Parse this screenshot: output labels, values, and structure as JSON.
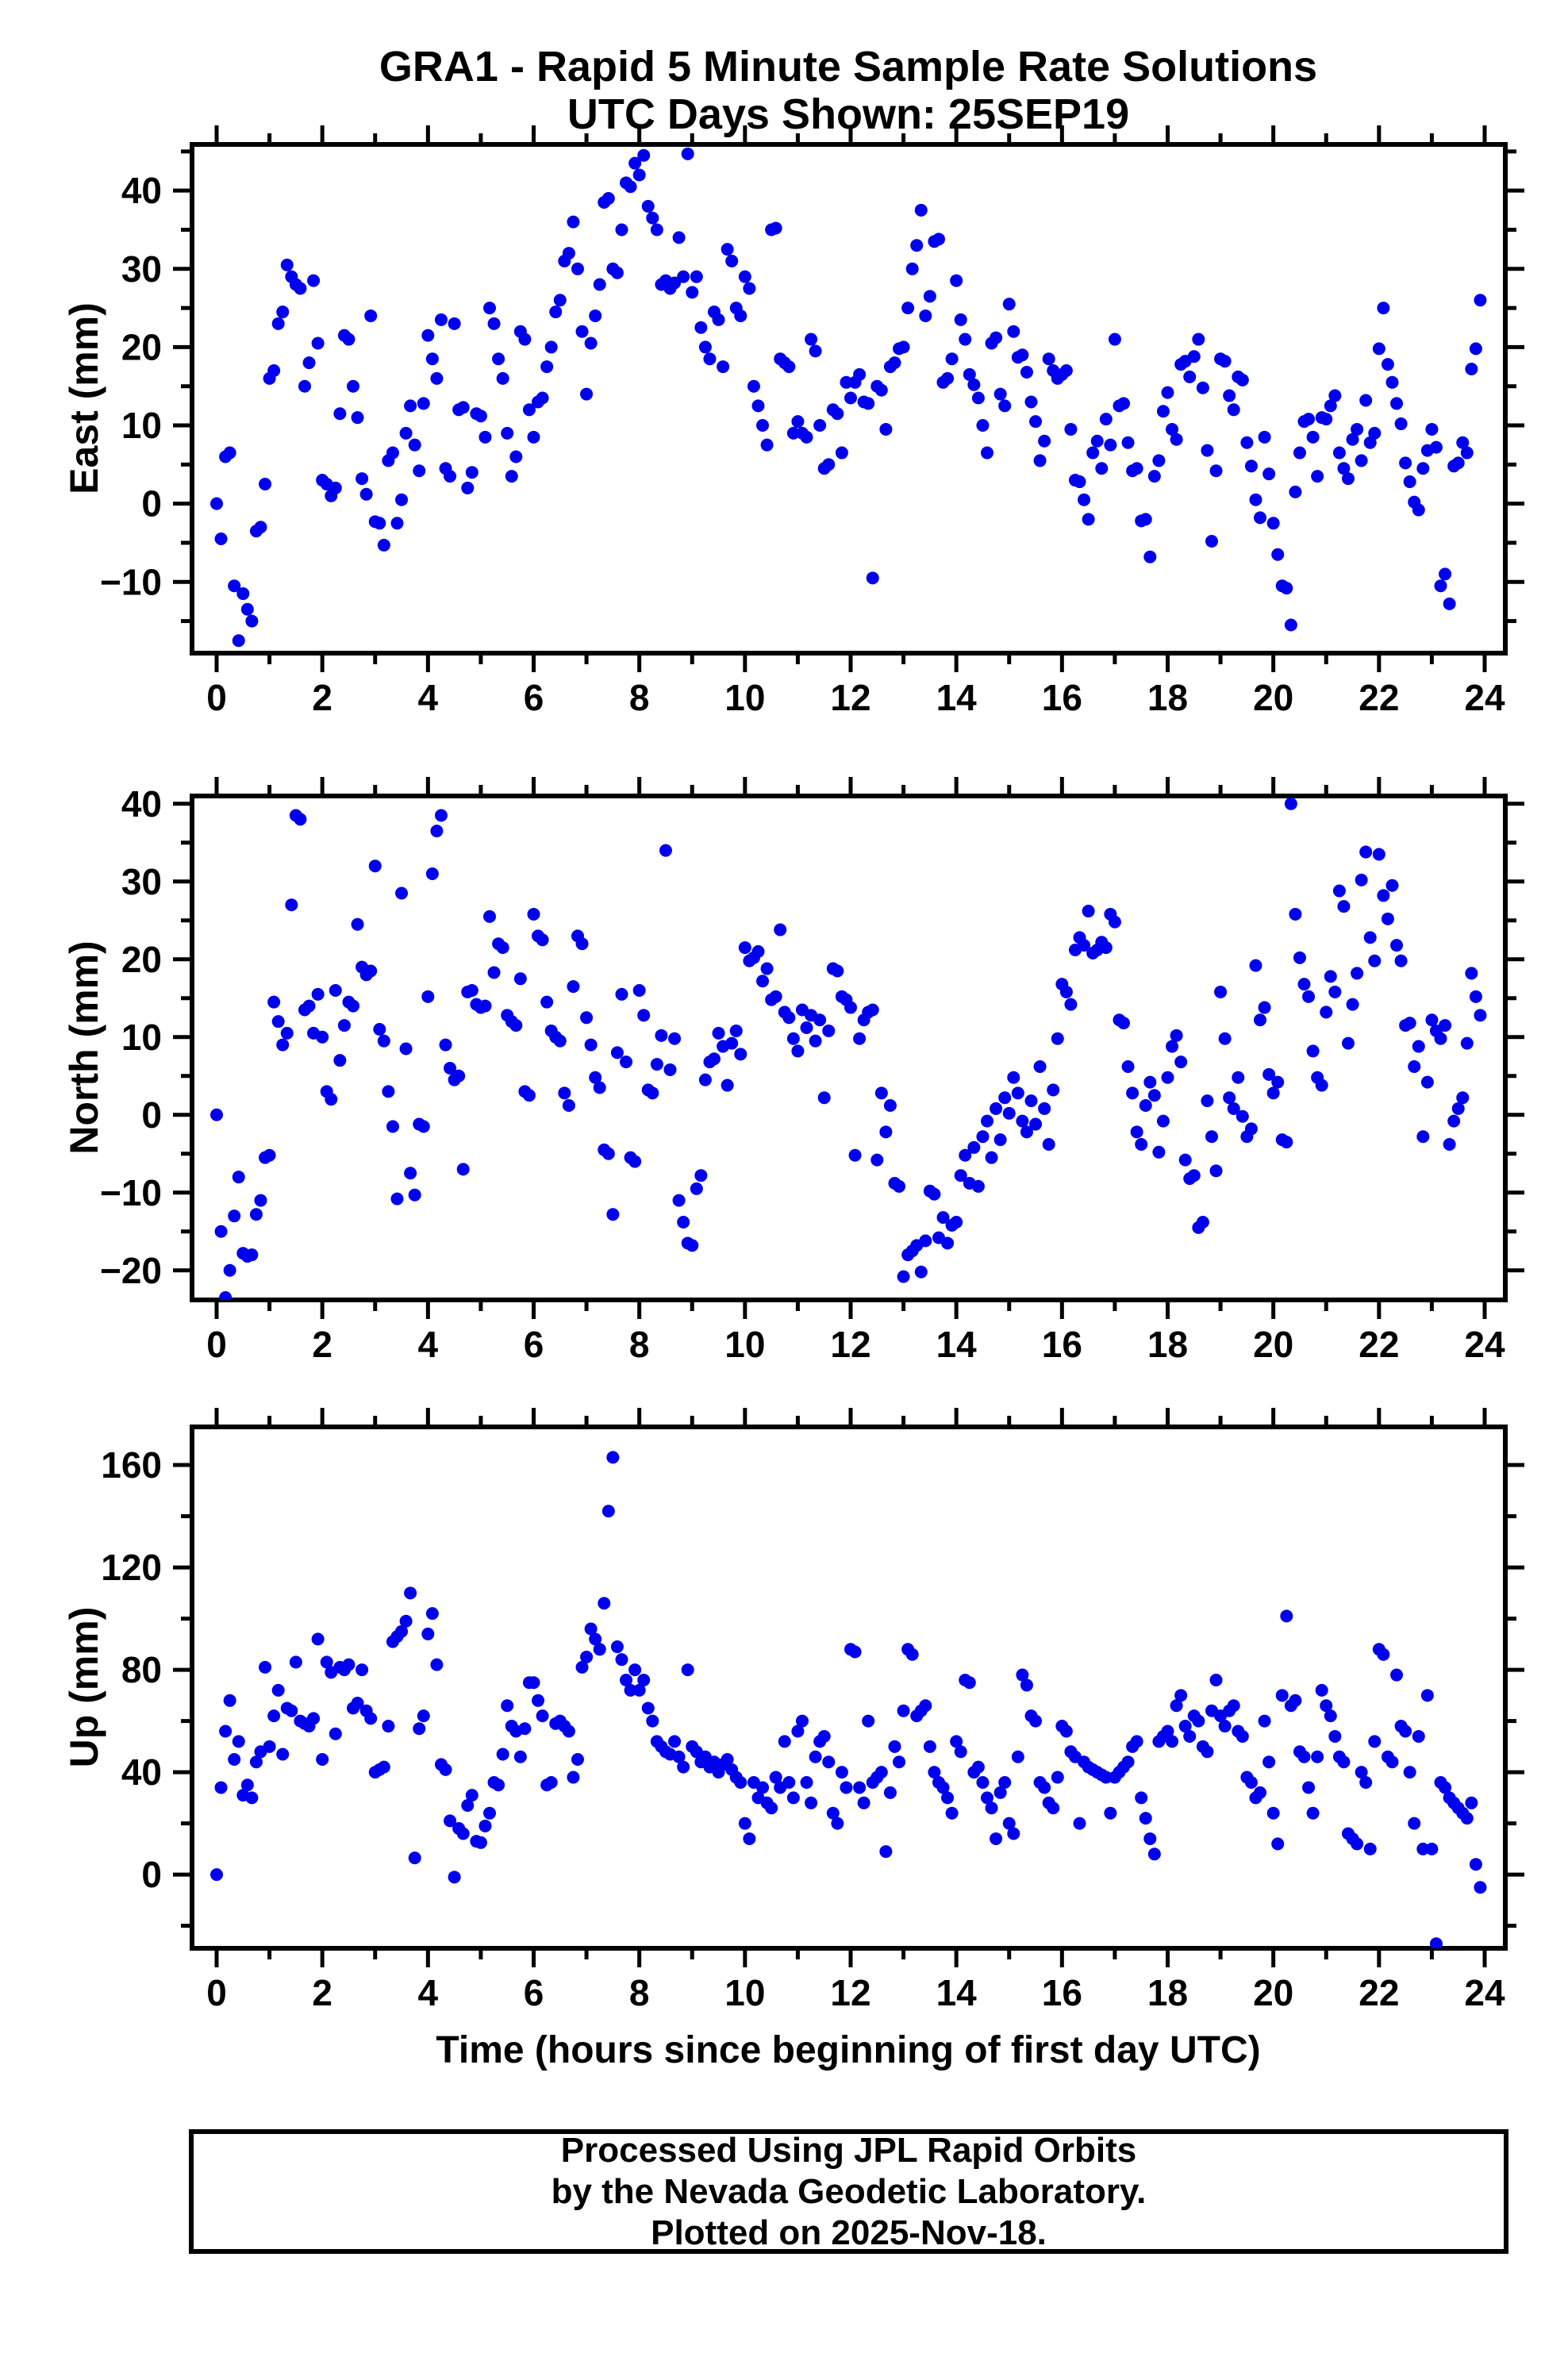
{
  "title": {
    "line1": "GRA1 - Rapid 5 Minute Sample Rate Solutions",
    "line2": "UTC Days Shown:  25SEP19"
  },
  "xlabel": "Time (hours since beginning of first day UTC)",
  "footer": {
    "line1": "Processed Using JPL Rapid Orbits",
    "line2": "by the Nevada Geodetic Laboratory.",
    "line3": "Plotted on 2025-Nov-18."
  },
  "style": {
    "dot_color": "#0000EE",
    "frame_color": "#000000",
    "background": "#FFFFFF"
  },
  "chart_data": [
    {
      "type": "scatter",
      "name": "east",
      "ylabel": "East (mm)",
      "ylim": [
        -19.1,
        45.9
      ],
      "yticks_major": [
        -10,
        0,
        10,
        20,
        30,
        40
      ],
      "yticks_minor": [
        -15,
        -5,
        5,
        15,
        25,
        35,
        45
      ],
      "xlim": [
        -0.47,
        24.39
      ],
      "xticks_major": [
        0,
        2,
        4,
        6,
        8,
        10,
        12,
        14,
        16,
        18,
        20,
        22,
        24
      ],
      "xticks_minor": [
        1,
        3,
        5,
        7,
        9,
        11,
        13,
        15,
        17,
        19,
        21,
        23
      ],
      "x_start_hours": 0,
      "x_step_hours": 0.0833333,
      "values": [
        0,
        -4.5,
        6,
        6.5,
        -10.5,
        -17.5,
        -11.5,
        -13.5,
        -15,
        -3.5,
        -3,
        2.5,
        16,
        17,
        23,
        24.5,
        30.5,
        29,
        28,
        27.5,
        15,
        18,
        28.5,
        20.5,
        3,
        2.5,
        1,
        2,
        11.5,
        21.5,
        21,
        15,
        11,
        3.2,
        1.2,
        24,
        -2.3,
        -2.5,
        -5.3,
        5.5,
        6.5,
        -2.5,
        0.5,
        9,
        12.5,
        7.5,
        4.2,
        12.8,
        21.5,
        18.5,
        16,
        23.5,
        4.5,
        3.5,
        23,
        12,
        12.3,
        2,
        4,
        11.5,
        11.2,
        8.5,
        25,
        23,
        18.5,
        16,
        9,
        3.5,
        6,
        22,
        21,
        12,
        8.5,
        13,
        13.5,
        17.5,
        20,
        24.5,
        26,
        31,
        32,
        36,
        30,
        22,
        14,
        20.5,
        24,
        28,
        38.5,
        39,
        30,
        29.5,
        35,
        41,
        40.5,
        43.5,
        42,
        44.5,
        38,
        36.5,
        35,
        28,
        28.5,
        27.5,
        28.2,
        34,
        29,
        44.7,
        27,
        29,
        22.5,
        20,
        18.5,
        24.5,
        23.5,
        17.5,
        32.5,
        31,
        25,
        24,
        29,
        27.5,
        15,
        12.5,
        10,
        7.5,
        35,
        35.2,
        18.5,
        18,
        17.5,
        9,
        10.5,
        9,
        8.5,
        21,
        19.5,
        10,
        4.5,
        5,
        12,
        11.5,
        6.5,
        15.5,
        13.5,
        15.5,
        16.5,
        13,
        12.8,
        -9.5,
        15,
        14.5,
        9.5,
        17.5,
        18,
        19.8,
        20,
        25,
        30,
        33,
        37.5,
        24,
        26.5,
        33.5,
        33.8,
        15.5,
        16,
        18.5,
        28.5,
        23.5,
        21,
        16.5,
        15.2,
        13.5,
        10,
        6.5,
        20.5,
        21.2,
        14,
        12.5,
        25.5,
        22,
        18.7,
        19,
        16.8,
        13,
        10.5,
        5.5,
        8,
        18.5,
        17,
        16,
        16.5,
        17,
        9.5,
        3,
        2.8,
        0.5,
        -2,
        6.5,
        8,
        4.5,
        10.8,
        7.5,
        21,
        12.5,
        12.8,
        7.8,
        4.2,
        4.5,
        -2.2,
        -2,
        -6.8,
        3.5,
        5.5,
        11.8,
        14.2,
        9.5,
        8.2,
        17.8,
        18.2,
        16.2,
        18.8,
        21,
        14.8,
        6.8,
        -4.8,
        4.2,
        18.5,
        18.2,
        13.8,
        12,
        16.2,
        15.8,
        7.8,
        4.8,
        0.5,
        -1.8,
        8.5,
        3.8,
        -2.5,
        -6.5,
        -10.5,
        -10.8,
        -15.5,
        1.5,
        6.5,
        10.5,
        10.8,
        8.5,
        3.5,
        11,
        10.8,
        12.5,
        13.8,
        6.5,
        4.5,
        3.2,
        8.2,
        9.5,
        5.5,
        13.2,
        7.8,
        9,
        19.8,
        25,
        17.8,
        15.5,
        12.8,
        10.2,
        5.2,
        2.8,
        0.2,
        -0.8,
        4.5,
        6.8,
        9.5,
        7.2,
        -10.5,
        -9,
        -12.8,
        4.8,
        5.2,
        7.8,
        6.5,
        17.2,
        19.8,
        26
      ]
    },
    {
      "type": "scatter",
      "name": "north",
      "ylabel": "North (mm)",
      "ylim": [
        -23.8,
        41.0
      ],
      "yticks_major": [
        -20,
        -10,
        0,
        10,
        20,
        30,
        40
      ],
      "yticks_minor": [
        -15,
        -5,
        5,
        15,
        25,
        35
      ],
      "xlim": [
        -0.47,
        24.39
      ],
      "xticks_major": [
        0,
        2,
        4,
        6,
        8,
        10,
        12,
        14,
        16,
        18,
        20,
        22,
        24
      ],
      "xticks_minor": [
        1,
        3,
        5,
        7,
        9,
        11,
        13,
        15,
        17,
        19,
        21,
        23
      ],
      "x_start_hours": 0,
      "x_step_hours": 0.0833333,
      "values": [
        0,
        -15,
        -23.5,
        -20,
        -13,
        -8,
        -17.8,
        -18.2,
        -18,
        -12.8,
        -11,
        -5.5,
        -5.2,
        14.5,
        12,
        9,
        10.5,
        27,
        38.5,
        38,
        13.5,
        14,
        10.5,
        15.5,
        10,
        3,
        2,
        16,
        7,
        11.5,
        14.5,
        14,
        24.5,
        19,
        18,
        18.5,
        32,
        11,
        9.5,
        3,
        -1.5,
        -10.8,
        28.5,
        8.5,
        -7.5,
        -10.3,
        -1.2,
        -1.5,
        15.2,
        31,
        36.5,
        38.5,
        9,
        6,
        4.5,
        5,
        -7,
        15.8,
        16,
        14.2,
        13.8,
        14,
        25.5,
        18.3,
        22,
        21.5,
        12.8,
        12,
        11.5,
        17.5,
        3,
        2.5,
        25.8,
        23,
        22.5,
        14.5,
        10.8,
        10,
        9.5,
        2.8,
        1.2,
        16.5,
        23,
        22,
        12.5,
        9,
        4.8,
        3.5,
        -4.5,
        -5,
        -12.8,
        8,
        15.5,
        6.8,
        -5.5,
        -6,
        16,
        12.8,
        3.2,
        2.8,
        6.5,
        10.2,
        34,
        5.8,
        9.8,
        -11,
        -13.8,
        -16.5,
        -16.8,
        -9.5,
        -7.8,
        4.5,
        6.8,
        7.2,
        10.5,
        8.8,
        3.8,
        9.2,
        10.8,
        7.8,
        21.5,
        19.8,
        20.2,
        21,
        17.2,
        18.8,
        14.8,
        15.2,
        23.8,
        13.2,
        12.5,
        9.8,
        8.2,
        13.5,
        11.2,
        12.8,
        9.5,
        12.2,
        2.2,
        10.8,
        18.8,
        18.5,
        15.2,
        14.8,
        13.8,
        -5.2,
        9.8,
        12.2,
        13.2,
        13.5,
        -5.8,
        2.8,
        -2.2,
        1.2,
        -8.8,
        -9.2,
        -20.8,
        -18,
        -17.5,
        -16.8,
        -20.2,
        -16.2,
        -9.8,
        -10.2,
        -15.8,
        -13.2,
        -16.5,
        -14.2,
        -13.8,
        -7.8,
        -5.2,
        -8.8,
        -4.2,
        -9.2,
        -2.8,
        -0.8,
        -5.5,
        0.8,
        -3.2,
        2.2,
        0.2,
        4.8,
        2.8,
        -0.8,
        -2.2,
        1.8,
        -1.2,
        6.2,
        0.8,
        -3.8,
        3.2,
        9.8,
        16.8,
        15.8,
        14.2,
        21.2,
        22.8,
        21.8,
        26.2,
        20.8,
        21.2,
        22.2,
        21.5,
        25.8,
        24.8,
        12.2,
        11.8,
        6.2,
        2.8,
        -2.2,
        -3.8,
        1.2,
        4.2,
        2.5,
        -4.8,
        -0.8,
        4.8,
        8.8,
        10.2,
        6.8,
        -5.8,
        -8.2,
        -7.8,
        -14.5,
        -13.8,
        1.8,
        -2.8,
        -7.2,
        15.8,
        9.8,
        2.2,
        0.8,
        4.8,
        -0.2,
        -2.8,
        -1.8,
        19.2,
        12.2,
        13.8,
        5.2,
        2.8,
        4.2,
        -3.2,
        -3.5,
        40,
        25.8,
        20.2,
        16.8,
        15.2,
        8.2,
        4.8,
        3.8,
        13.2,
        17.8,
        15.8,
        28.8,
        26.8,
        9.2,
        14.2,
        18.2,
        30.2,
        33.8,
        22.8,
        19.8,
        33.5,
        28.2,
        25.2,
        29.5,
        21.8,
        19.8,
        11.5,
        11.8,
        6.2,
        8.8,
        -2.8,
        4.2,
        12.2,
        10.8,
        9.8,
        11.5,
        -3.8,
        -0.8,
        0.8,
        2.2,
        9.2,
        18.2,
        15.2,
        12.8
      ]
    },
    {
      "type": "scatter",
      "name": "up",
      "ylabel": "Up (mm)",
      "ylim": [
        -28.8,
        174.9
      ],
      "yticks_major": [
        0,
        40,
        80,
        120,
        160
      ],
      "yticks_minor": [
        -20,
        20,
        60,
        100,
        140
      ],
      "xlim": [
        -0.47,
        24.39
      ],
      "xticks_major": [
        0,
        2,
        4,
        6,
        8,
        10,
        12,
        14,
        16,
        18,
        20,
        22,
        24
      ],
      "xticks_minor": [
        1,
        3,
        5,
        7,
        9,
        11,
        13,
        15,
        17,
        19,
        21,
        23
      ],
      "x_start_hours": 0,
      "x_step_hours": 0.0833333,
      "values": [
        0,
        34,
        56,
        68,
        45,
        52,
        31,
        35,
        30,
        44,
        48,
        81,
        50,
        62,
        72,
        47,
        65,
        64,
        83,
        60,
        59,
        58,
        61,
        92,
        45,
        83,
        79,
        55,
        81,
        80,
        82,
        65,
        67,
        80,
        64,
        61,
        40,
        41,
        42,
        58,
        91,
        93,
        95,
        99,
        110,
        6.5,
        57,
        62,
        94,
        102,
        82,
        43,
        41,
        21,
        -1,
        18,
        16,
        27,
        31,
        13,
        12.5,
        19,
        24,
        36,
        35,
        47,
        66,
        58,
        56,
        46,
        57,
        75,
        75,
        68,
        62,
        35,
        36,
        59,
        60,
        58,
        56,
        38,
        45,
        81,
        85,
        96,
        92,
        88,
        106,
        142,
        163,
        89,
        84,
        76,
        72,
        80,
        72,
        76,
        65,
        60,
        52,
        50,
        48,
        47,
        52,
        46,
        42,
        80,
        50,
        48,
        44,
        46,
        42,
        44,
        40,
        43,
        45,
        41,
        38,
        36,
        20,
        14,
        36,
        30,
        34,
        28,
        26,
        38,
        34,
        52,
        36,
        30,
        56,
        60,
        36,
        28,
        46,
        52,
        54,
        44,
        24,
        20,
        40,
        34,
        88,
        87,
        34,
        28,
        60,
        36,
        38,
        40,
        9,
        32,
        50,
        44,
        64,
        88,
        86,
        62,
        64,
        66,
        50,
        40,
        36,
        34,
        30,
        24,
        52,
        48,
        76,
        75,
        40,
        42,
        36,
        30,
        26,
        14,
        32,
        36,
        20,
        16,
        46,
        78,
        74,
        62,
        60,
        36,
        34,
        28,
        26,
        38,
        58,
        56,
        48,
        46,
        20,
        44,
        42,
        41,
        40,
        39,
        38,
        24,
        38,
        40,
        42,
        44,
        50,
        52,
        30,
        22,
        14,
        8,
        52,
        54,
        56,
        52,
        66,
        70,
        58,
        54,
        62,
        60,
        50,
        48,
        64,
        76,
        62,
        58,
        64,
        66,
        56,
        54,
        38,
        36,
        30,
        32,
        60,
        44,
        24,
        12,
        70,
        101,
        66,
        68,
        48,
        46,
        34,
        24,
        46,
        72,
        66,
        62,
        54,
        46,
        44,
        16,
        14,
        12,
        40,
        36,
        10,
        52,
        88,
        86,
        46,
        44,
        78,
        58,
        56,
        40,
        20,
        54,
        10,
        70,
        10,
        -27,
        36,
        34,
        30,
        28,
        26,
        24,
        22,
        28,
        4,
        -5
      ]
    }
  ]
}
